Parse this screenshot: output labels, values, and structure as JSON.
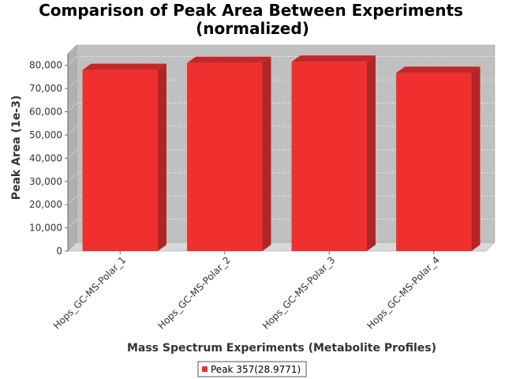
{
  "chart_data": {
    "type": "bar",
    "title_line1": "Comparison of Peak Area Between Experiments",
    "title_line2": "(normalized)",
    "xlabel": "Mass Spectrum Experiments (Metabolite Profiles)",
    "ylabel": "Peak Area (1e-3)",
    "categories": [
      "Hops_GC-MS-Polar_1",
      "Hops_GC-MS-Polar_2",
      "Hops_GC-MS-Polar_3",
      "Hops_GC-MS-Polar_4"
    ],
    "series": [
      {
        "name": "Peak 357(28.9771)",
        "values": [
          78000,
          81000,
          81500,
          76700
        ],
        "color": "#f02f2f"
      }
    ],
    "ylim": [
      0,
      85000
    ],
    "yticks": [
      0,
      10000,
      20000,
      30000,
      40000,
      50000,
      60000,
      70000,
      80000
    ],
    "ytick_labels": [
      "0",
      "10,000",
      "20,000",
      "30,000",
      "40,000",
      "50,000",
      "60,000",
      "70,000",
      "80,000"
    ],
    "grid": true,
    "legend_position": "bottom",
    "colors": {
      "plot_background": "#c0c0c0",
      "floor": "#d8d8d8",
      "bar": "#f02f2f",
      "bar_top": "#c42727",
      "bar_side": "#b02525"
    }
  }
}
